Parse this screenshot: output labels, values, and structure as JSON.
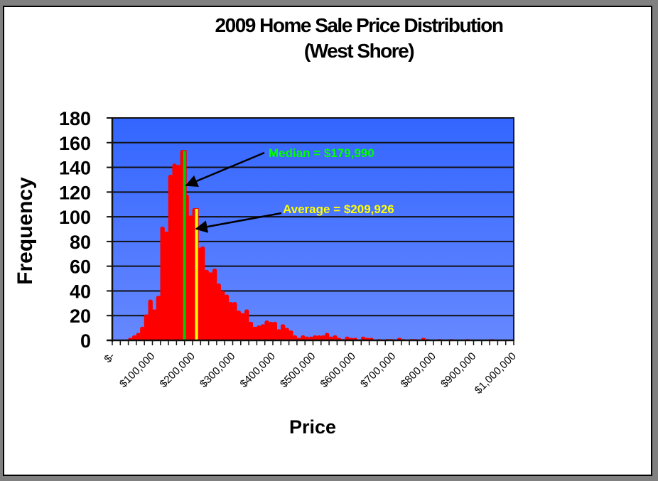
{
  "chart_data": {
    "type": "bar",
    "title": "2009 Home Sale Price Distribution",
    "subtitle": "(West Shore)",
    "xlabel": "Price",
    "ylabel": "Frequency",
    "ylim": [
      0,
      180
    ],
    "yticks": [
      0,
      20,
      40,
      60,
      80,
      100,
      120,
      140,
      160,
      180
    ],
    "xlim": [
      0,
      1000000
    ],
    "xtick_labels": [
      "$-",
      "$100,000",
      "$200,000",
      "$300,000",
      "$400,000",
      "$500,000",
      "$600,000",
      "$700,000",
      "$800,000",
      "$900,000",
      "$1,000,000"
    ],
    "grid": true,
    "bin_width": 10000,
    "bin_starts": [
      0,
      10000,
      20000,
      30000,
      40000,
      50000,
      60000,
      70000,
      80000,
      90000,
      100000,
      110000,
      120000,
      130000,
      140000,
      150000,
      160000,
      170000,
      180000,
      190000,
      200000,
      210000,
      220000,
      230000,
      240000,
      250000,
      260000,
      270000,
      280000,
      290000,
      300000,
      310000,
      320000,
      330000,
      340000,
      350000,
      360000,
      370000,
      380000,
      390000,
      400000,
      410000,
      420000,
      430000,
      440000,
      450000,
      460000,
      470000,
      480000,
      490000,
      500000,
      510000,
      520000,
      530000,
      540000,
      550000,
      560000,
      570000,
      580000,
      590000,
      600000,
      610000,
      620000,
      630000,
      640000,
      650000,
      660000,
      670000,
      680000,
      690000,
      700000,
      710000,
      720000,
      730000,
      740000,
      750000,
      760000,
      770000,
      780000,
      790000,
      800000,
      810000,
      820000,
      830000,
      840000,
      850000,
      860000,
      870000,
      880000,
      890000,
      900000,
      910000,
      920000,
      930000,
      940000,
      950000,
      960000,
      970000,
      980000,
      990000
    ],
    "values": [
      0,
      0,
      0,
      0,
      2,
      4,
      6,
      11,
      21,
      33,
      25,
      36,
      92,
      88,
      134,
      143,
      142,
      154,
      118,
      101,
      107,
      75,
      76,
      57,
      55,
      58,
      46,
      40,
      37,
      31,
      31,
      24,
      22,
      25,
      15,
      11,
      12,
      13,
      16,
      15,
      15,
      9,
      13,
      10,
      8,
      4,
      2,
      4,
      3,
      3,
      4,
      4,
      4,
      6,
      3,
      4,
      2,
      1,
      3,
      2,
      2,
      0,
      3,
      2,
      2,
      0,
      1,
      0,
      1,
      1,
      0,
      2,
      1,
      0,
      1,
      1,
      0,
      2,
      1,
      0,
      0,
      1,
      0,
      0,
      1,
      0,
      0,
      0,
      1,
      0,
      0,
      0,
      0,
      0,
      1,
      0,
      0,
      0,
      0,
      0
    ],
    "bar_color": "#ff0000",
    "background_gradient": [
      "#3366ff",
      "#6688ff"
    ],
    "annotations": [
      {
        "label": "Median = $179,990",
        "value": 179990,
        "color": "#00ff00",
        "line_color": "#00cc00"
      },
      {
        "label": "Average = $209,926",
        "value": 209926,
        "color": "#ffff00",
        "line_color": "#ffff00"
      }
    ]
  }
}
